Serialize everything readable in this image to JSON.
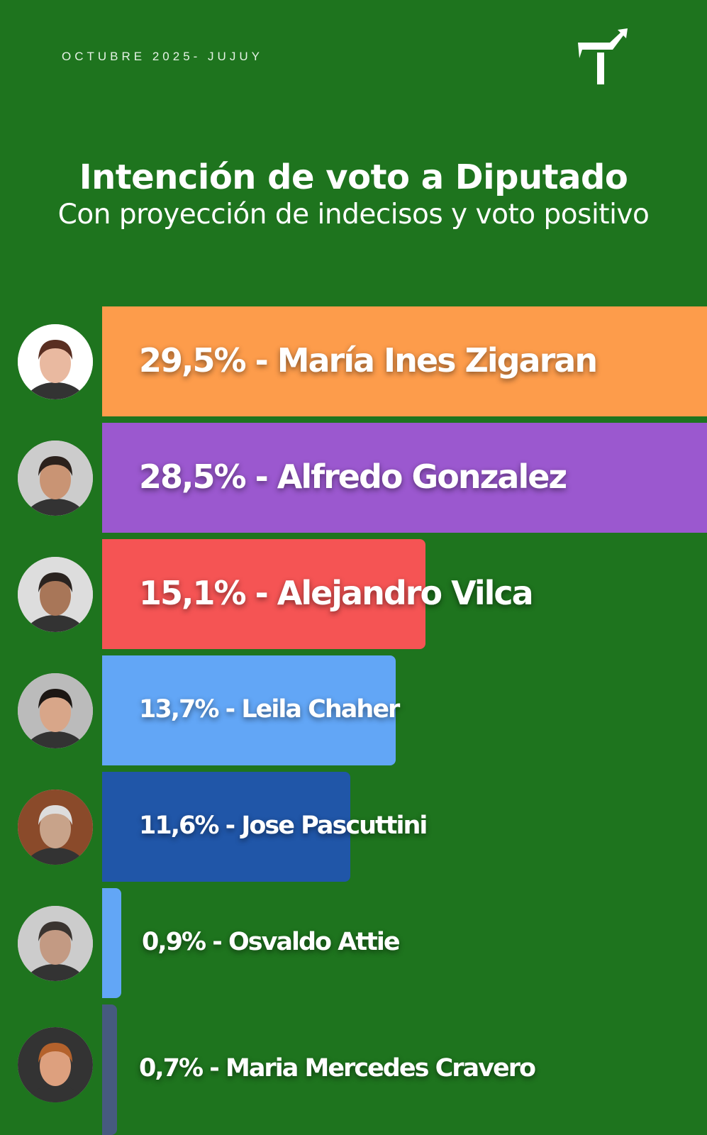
{
  "header": {
    "date": "OCTUBRE 2025- JUJUY",
    "logo_icon": "t-arrow-logo-icon"
  },
  "chart_data": {
    "type": "bar",
    "orientation": "horizontal",
    "title": "Intención de voto a Diputado",
    "subtitle": "Con proyección de indecisos y voto positivo",
    "unit": "%",
    "categories": [
      "María Ines Zigaran",
      "Alfredo Gonzalez",
      "Alejandro Vilca",
      "Leila Chaher",
      "Jose Pascuttini",
      "Osvaldo Attie",
      "Maria Mercedes Cravero"
    ],
    "values": [
      29.5,
      28.5,
      15.1,
      13.7,
      11.6,
      0.9,
      0.7
    ],
    "value_labels": [
      "29,5%",
      "28,5%",
      "15,1%",
      "13,7%",
      "11,6%",
      "0,9%",
      "0,7%"
    ],
    "colors": [
      "#fd9c4b",
      "#9b58cf",
      "#f55454",
      "#62a6f6",
      "#2056a8",
      "#62a6f6",
      "#465a7f"
    ],
    "grid": false,
    "legend": "none"
  },
  "colors": {
    "background": "#1e741e",
    "text": "#ffffff"
  }
}
